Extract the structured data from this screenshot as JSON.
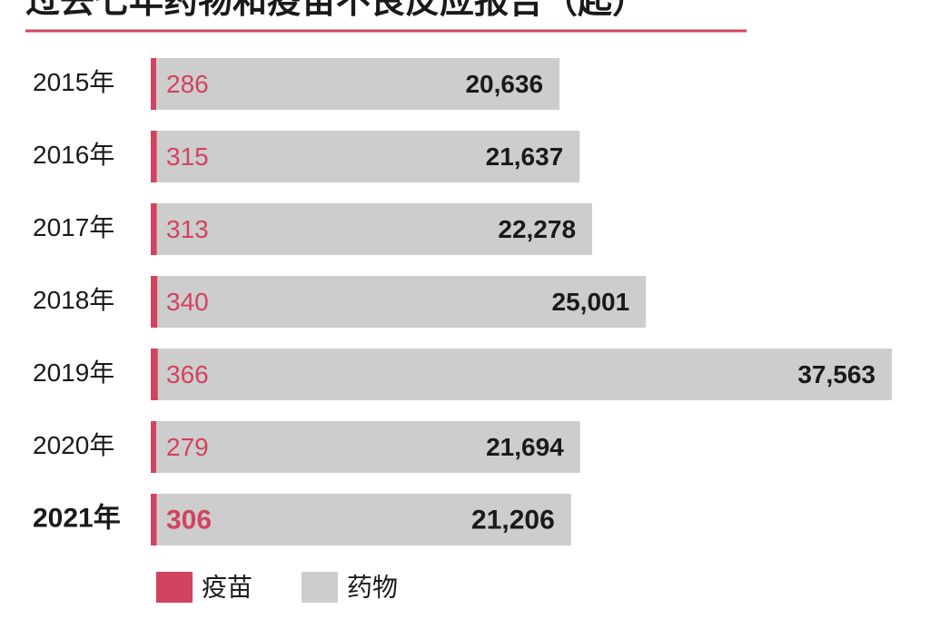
{
  "chart_data": {
    "type": "stacked-bar-horizontal",
    "title": "过去七年药物和疫苗不良反应报告（起）",
    "categories": [
      "2015年",
      "2016年",
      "2017年",
      "2018年",
      "2019年",
      "2020年",
      "2021年"
    ],
    "series": [
      {
        "name": "疫苗",
        "color": "#d2435f",
        "values": [
          286,
          315,
          313,
          340,
          366,
          279,
          306
        ]
      },
      {
        "name": "药物",
        "color": "#cdcdcd",
        "values": [
          20636,
          21637,
          22278,
          25001,
          37563,
          21694,
          21206
        ],
        "value_labels": [
          "20,636",
          "21,637",
          "22,278",
          "25,001",
          "37,563",
          "21,694",
          "21,206"
        ]
      }
    ]
  }
}
